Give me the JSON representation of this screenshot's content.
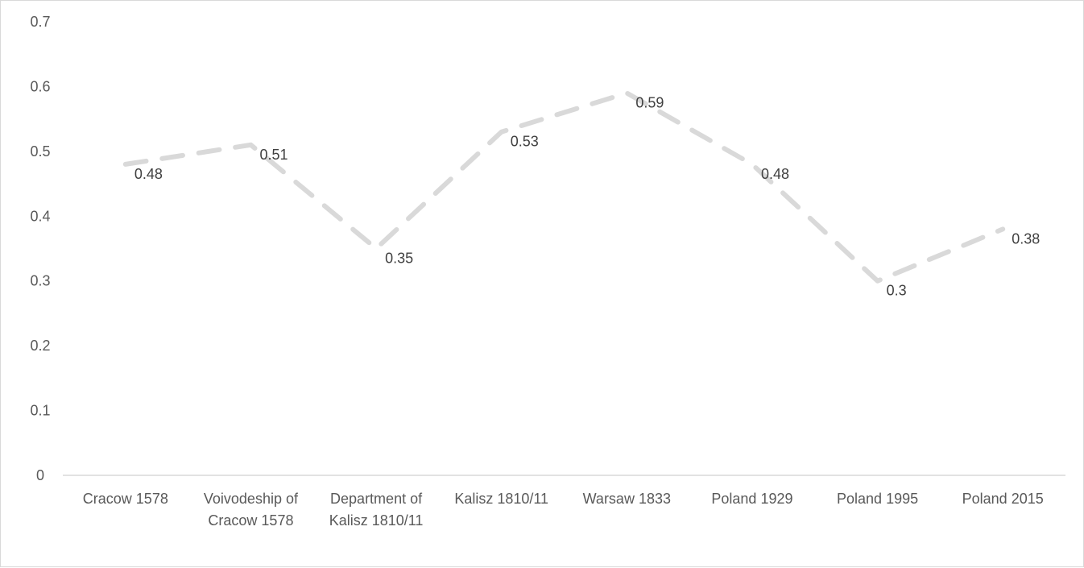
{
  "chart_data": {
    "type": "line",
    "title": "",
    "xlabel": "",
    "ylabel": "",
    "categories": [
      [
        "Cracow 1578"
      ],
      [
        "Voivodeship of",
        "Cracow 1578"
      ],
      [
        "Department of",
        "Kalisz 1810/11"
      ],
      [
        "Kalisz 1810/11"
      ],
      [
        "Warsaw 1833"
      ],
      [
        "Poland 1929"
      ],
      [
        "Poland 1995"
      ],
      [
        "Poland 2015"
      ]
    ],
    "series": [
      {
        "values": [
          0.48,
          0.51,
          0.35,
          0.53,
          0.59,
          0.48,
          0.3,
          0.38
        ],
        "data_labels": [
          "0.48",
          "0.51",
          "0.35",
          "0.53",
          "0.59",
          "0.48",
          "0.3",
          "0.38"
        ],
        "color": "#d9d9d9",
        "line_style": "dashed"
      }
    ],
    "yticks": [
      "0",
      "0.1",
      "0.2",
      "0.3",
      "0.4",
      "0.5",
      "0.6",
      "0.7"
    ],
    "ylim": [
      0,
      0.7
    ],
    "grid": false,
    "legend": "none",
    "axis_color": "#d9d9d9"
  }
}
